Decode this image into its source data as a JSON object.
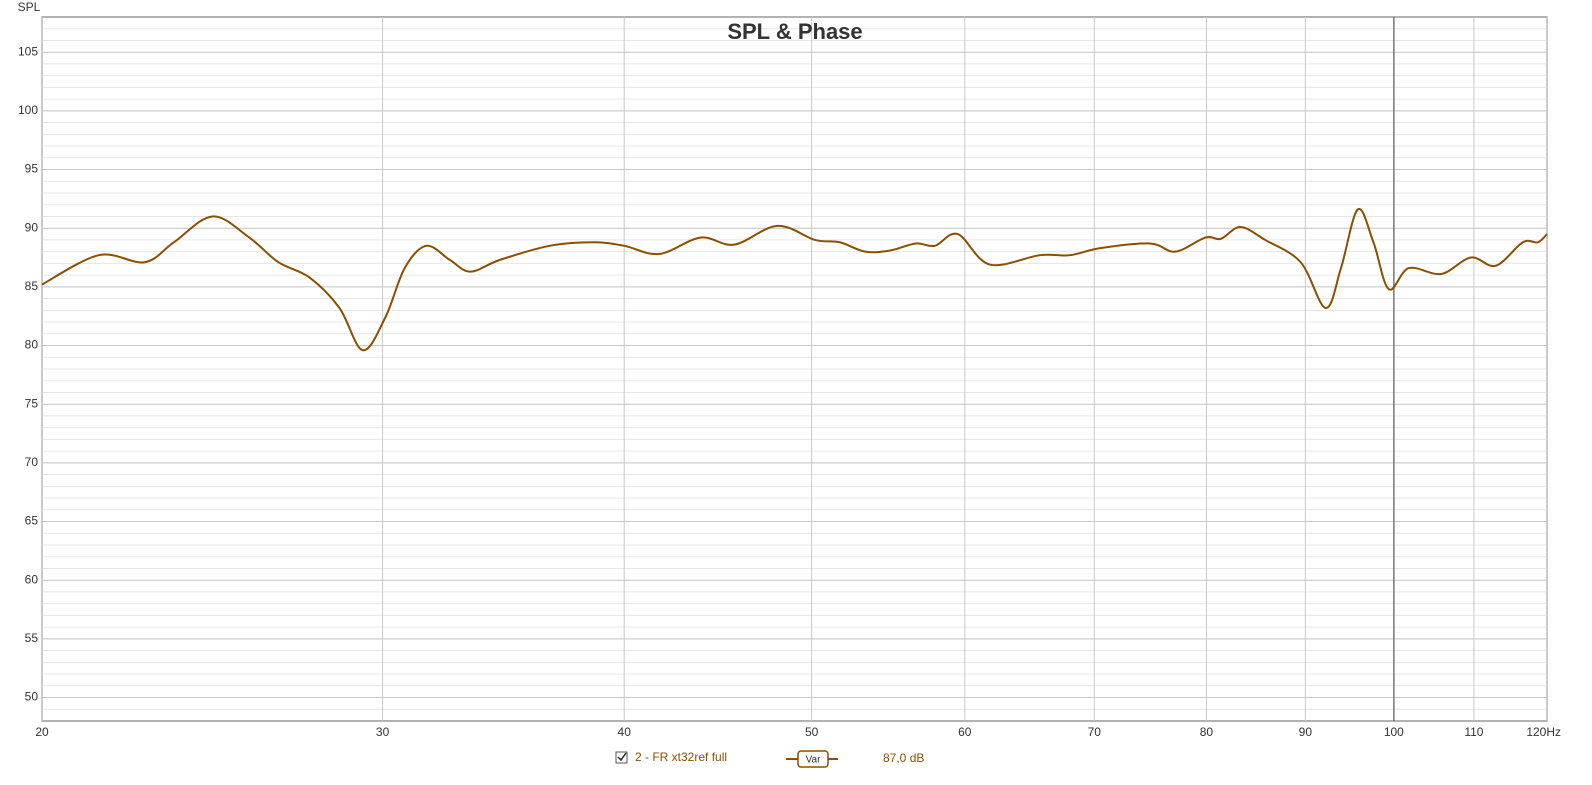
{
  "chart_data": {
    "type": "line",
    "title": "SPL & Phase",
    "y_label": "SPL",
    "x_scale": "log",
    "grid": true,
    "cursor_x": 100,
    "xlim": [
      20,
      120
    ],
    "ylim": [
      48,
      108
    ],
    "xticks": [
      20,
      30,
      40,
      50,
      60,
      70,
      80,
      90,
      100,
      110,
      {
        "value": 120,
        "label": "120Hz"
      }
    ],
    "yticks": [
      50,
      55,
      60,
      65,
      70,
      75,
      80,
      85,
      90,
      95,
      100,
      105
    ],
    "series": [
      {
        "name": "2 - FR xt32ref full",
        "color": "#8b4f00",
        "x": [
          20.0,
          21.4,
          22.6,
          23.4,
          24.5,
          25.6,
          26.5,
          27.5,
          28.5,
          29.3,
          30.1,
          30.8,
          31.6,
          32.5,
          33.3,
          34.5,
          36.6,
          38.6,
          40.0,
          41.7,
          43.8,
          45.6,
          48.0,
          50.2,
          51.7,
          53.3,
          54.9,
          56.6,
          57.9,
          59.5,
          61.8,
          65.6,
          68.0,
          70.5,
          74.8,
          77.1,
          79.9,
          81.4,
          83.3,
          85.8,
          89.5,
          92.2,
          93.9,
          95.8,
          97.6,
          99.4,
          101.8,
          105.8,
          109.6,
          112.9,
          116.6,
          118.7,
          120.0
        ],
        "values": [
          85.2,
          87.7,
          87.1,
          88.8,
          91.0,
          89.2,
          87.1,
          85.8,
          83.2,
          79.6,
          82.4,
          86.6,
          88.5,
          87.3,
          86.3,
          87.3,
          88.5,
          88.8,
          88.5,
          87.8,
          89.2,
          88.6,
          90.2,
          89.0,
          88.8,
          88.0,
          88.1,
          88.7,
          88.5,
          89.5,
          86.9,
          87.7,
          87.7,
          88.3,
          88.7,
          88.0,
          89.2,
          89.1,
          90.1,
          89.0,
          87.1,
          83.2,
          86.6,
          91.6,
          88.8,
          84.8,
          86.6,
          86.1,
          87.5,
          86.8,
          88.8,
          88.8,
          89.5
        ]
      }
    ],
    "legend": {
      "button": "Var",
      "readout": "87,0 dB"
    }
  }
}
